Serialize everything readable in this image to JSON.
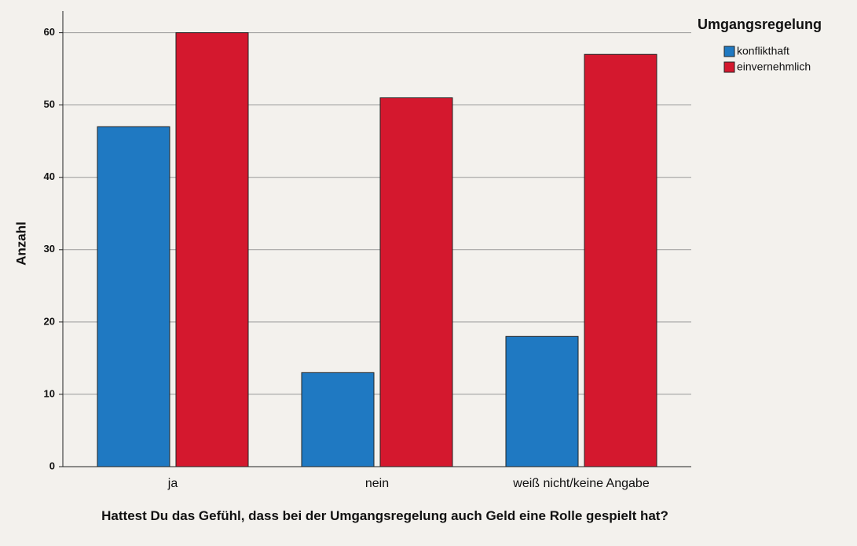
{
  "chart_data": {
    "type": "bar",
    "categories": [
      "ja",
      "nein",
      "weiß nicht/keine Angabe"
    ],
    "series": [
      {
        "name": "konflikthaft",
        "color": "#1f79c2",
        "values": [
          47,
          13,
          18
        ]
      },
      {
        "name": "einvernehmlich",
        "color": "#d4182e",
        "values": [
          60,
          51,
          57
        ]
      }
    ],
    "y_label": "Anzahl",
    "x_label": "Hattest Du das Gefühl, dass bei der Umgangsregelung auch Geld eine Rolle gespielt hat?",
    "legend_title": "Umgangsregelung",
    "legend": "upper right",
    "ylim": [
      0,
      63
    ],
    "yticks": [
      0,
      10,
      20,
      30,
      40,
      50,
      60
    ],
    "grid": true
  }
}
